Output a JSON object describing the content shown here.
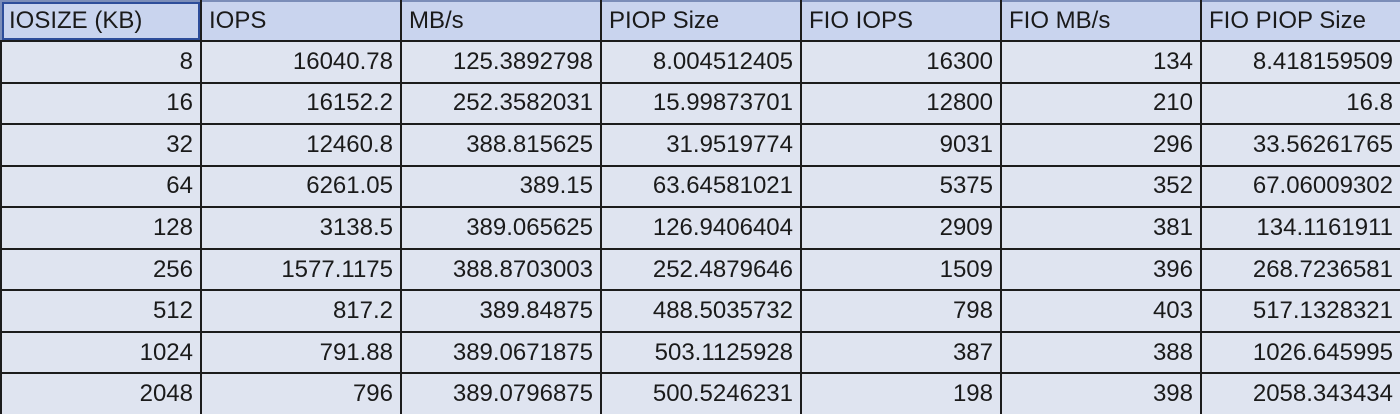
{
  "table": {
    "columns": [
      "IOSIZE (KB)",
      "IOPS",
      "MB/s",
      "PIOP Size",
      "FIO IOPS",
      "FIO MB/s",
      "FIO PIOP Size"
    ],
    "rows": [
      [
        "8",
        "16040.78",
        "125.3892798",
        "8.004512405",
        "16300",
        "134",
        "8.418159509"
      ],
      [
        "16",
        "16152.2",
        "252.3582031",
        "15.99873701",
        "12800",
        "210",
        "16.8"
      ],
      [
        "32",
        "12460.8",
        "388.815625",
        "31.9519774",
        "9031",
        "296",
        "33.56261765"
      ],
      [
        "64",
        "6261.05",
        "389.15",
        "63.64581021",
        "5375",
        "352",
        "67.06009302"
      ],
      [
        "128",
        "3138.5",
        "389.065625",
        "126.9406404",
        "2909",
        "381",
        "134.1161911"
      ],
      [
        "256",
        "1577.1175",
        "388.8703003",
        "252.4879646",
        "1509",
        "396",
        "268.7236581"
      ],
      [
        "512",
        "817.2",
        "389.84875",
        "488.5035732",
        "798",
        "403",
        "517.1328321"
      ],
      [
        "1024",
        "791.88",
        "389.0671875",
        "503.1125928",
        "387",
        "388",
        "1026.645995"
      ],
      [
        "2048",
        "796",
        "389.0796875",
        "500.5246231",
        "198",
        "398",
        "2058.343434"
      ]
    ]
  }
}
